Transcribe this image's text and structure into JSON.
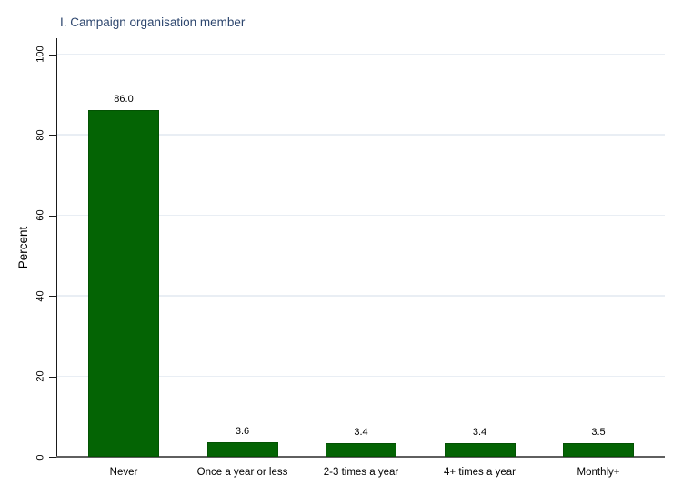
{
  "chart_data": {
    "type": "bar",
    "title": "I. Campaign organisation member",
    "categories": [
      "Never",
      "Once a year or less",
      "2-3 times a year",
      "4+ times a year",
      "Monthly+"
    ],
    "values": [
      86.0,
      3.6,
      3.4,
      3.4,
      3.5
    ],
    "value_labels": [
      "86.0",
      "3.6",
      "3.4",
      "3.4",
      "3.5"
    ],
    "xlabel": "",
    "ylabel": "Percent",
    "yticks": [
      0,
      20,
      40,
      60,
      80,
      100
    ],
    "ytick_labels": [
      "0",
      "20",
      "40",
      "60",
      "80",
      "100"
    ],
    "ylim": [
      0,
      104
    ],
    "grid": true,
    "legend": "none",
    "colors": {
      "bar_fill": "#046404",
      "bar_border": "#035203",
      "title_text": "#2d466e",
      "gridline": "#e9eef4",
      "x_axis_line": "#5f5f5f",
      "y_axis_line": "#1a1a1a",
      "text": "#000000",
      "background": "#ffffff"
    }
  }
}
